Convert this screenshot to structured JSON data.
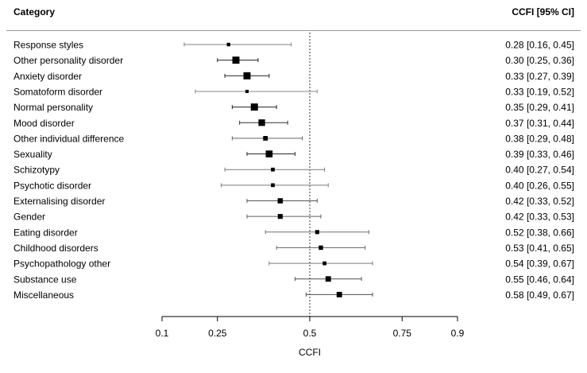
{
  "header": {
    "left": "Category",
    "right": "CCFI [95% CI]"
  },
  "chart_data": {
    "type": "forest",
    "xlabel": "CCFI",
    "xlim": [
      0.1,
      0.9
    ],
    "ref_line": 0.5,
    "ticks": [
      0.1,
      0.25,
      0.5,
      0.75,
      0.9
    ],
    "tick_labels": [
      "0.1",
      "0.25",
      "0.5",
      "0.75",
      "0.9"
    ],
    "rows": [
      {
        "label": "Response styles",
        "est": 0.28,
        "lo": 0.16,
        "hi": 0.45,
        "text": "0.28 [0.16, 0.45]",
        "weight": 0.2
      },
      {
        "label": "Other personality disorder",
        "est": 0.3,
        "lo": 0.25,
        "hi": 0.36,
        "text": "0.30 [0.25, 0.36]",
        "weight": 0.85
      },
      {
        "label": "Anxiety disorder",
        "est": 0.33,
        "lo": 0.27,
        "hi": 0.39,
        "text": "0.33 [0.27, 0.39]",
        "weight": 0.85
      },
      {
        "label": "Somatoform disorder",
        "est": 0.33,
        "lo": 0.19,
        "hi": 0.52,
        "text": "0.33 [0.19, 0.52]",
        "weight": 0.15
      },
      {
        "label": "Normal personality",
        "est": 0.35,
        "lo": 0.29,
        "hi": 0.41,
        "text": "0.35 [0.29, 0.41]",
        "weight": 0.85
      },
      {
        "label": "Mood disorder",
        "est": 0.37,
        "lo": 0.31,
        "hi": 0.44,
        "text": "0.37 [0.31, 0.44]",
        "weight": 0.75
      },
      {
        "label": "Other individual difference",
        "est": 0.38,
        "lo": 0.29,
        "hi": 0.48,
        "text": "0.38 [0.29, 0.48]",
        "weight": 0.4
      },
      {
        "label": "Sexuality",
        "est": 0.39,
        "lo": 0.33,
        "hi": 0.46,
        "text": "0.39 [0.33, 0.46]",
        "weight": 0.8
      },
      {
        "label": "Schizotypy",
        "est": 0.4,
        "lo": 0.27,
        "hi": 0.54,
        "text": "0.40 [0.27, 0.54]",
        "weight": 0.25
      },
      {
        "label": "Psychotic disorder",
        "est": 0.4,
        "lo": 0.26,
        "hi": 0.55,
        "text": "0.40 [0.26, 0.55]",
        "weight": 0.25
      },
      {
        "label": "Externalising disorder",
        "est": 0.42,
        "lo": 0.33,
        "hi": 0.52,
        "text": "0.42 [0.33, 0.52]",
        "weight": 0.5
      },
      {
        "label": "Gender",
        "est": 0.42,
        "lo": 0.33,
        "hi": 0.53,
        "text": "0.42 [0.33, 0.53]",
        "weight": 0.45
      },
      {
        "label": "Eating disorder",
        "est": 0.52,
        "lo": 0.38,
        "hi": 0.66,
        "text": "0.52 [0.38, 0.66]",
        "weight": 0.3
      },
      {
        "label": "Childhood disorders",
        "est": 0.53,
        "lo": 0.41,
        "hi": 0.65,
        "text": "0.53 [0.41, 0.65]",
        "weight": 0.35
      },
      {
        "label": "Psychopathology other",
        "est": 0.54,
        "lo": 0.39,
        "hi": 0.67,
        "text": "0.54 [0.39, 0.67]",
        "weight": 0.25
      },
      {
        "label": "Substance use",
        "est": 0.55,
        "lo": 0.46,
        "hi": 0.64,
        "text": "0.55 [0.46, 0.64]",
        "weight": 0.55
      },
      {
        "label": "Miscellaneous",
        "est": 0.58,
        "lo": 0.49,
        "hi": 0.67,
        "text": "0.58 [0.49, 0.67]",
        "weight": 0.55
      }
    ]
  }
}
